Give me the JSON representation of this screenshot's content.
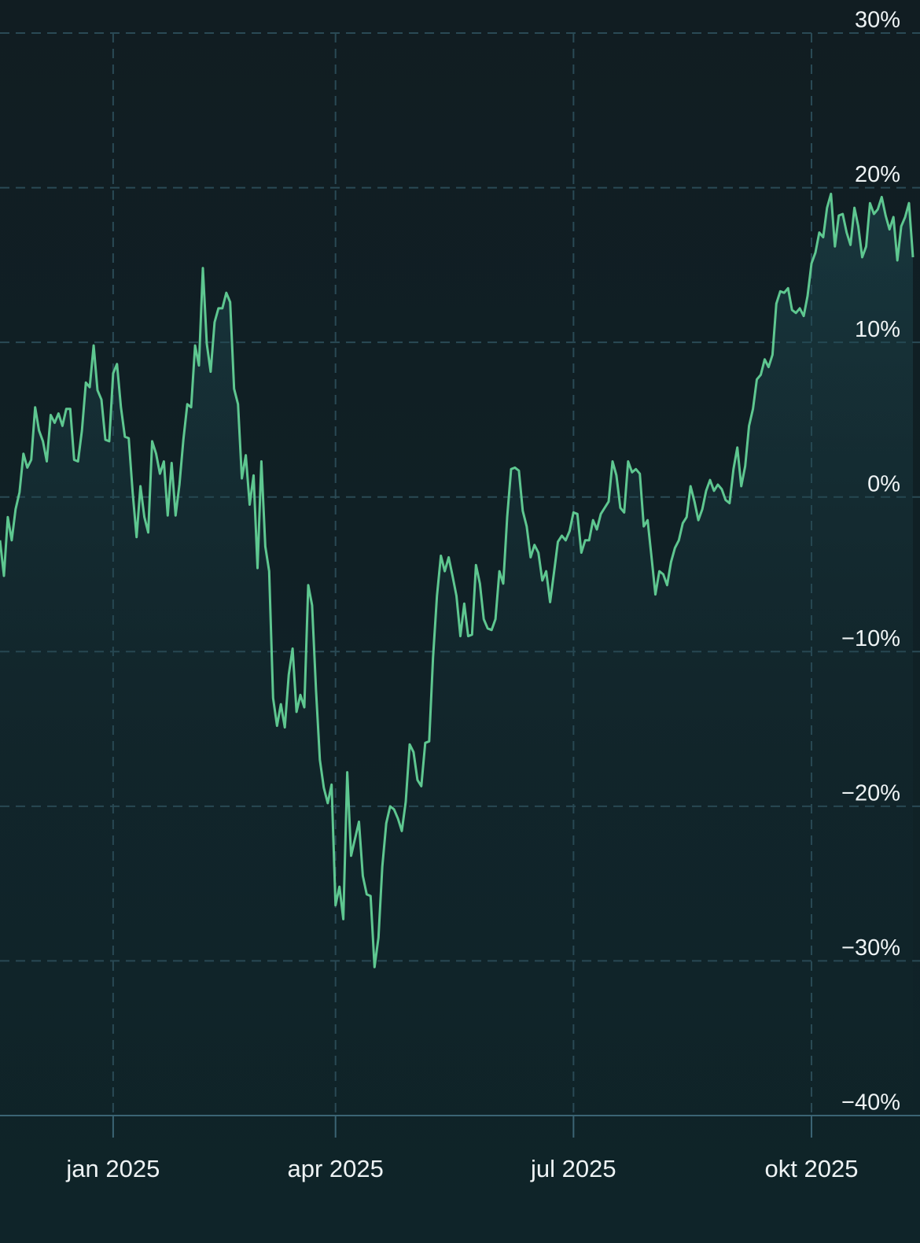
{
  "chart_data": {
    "type": "line",
    "values": [
      -2.8,
      -5.1,
      -1.3,
      -2.8,
      -0.8,
      0.3,
      2.8,
      1.9,
      2.4,
      5.8,
      4.3,
      3.6,
      2.3,
      5.3,
      4.8,
      5.4,
      4.6,
      5.7,
      5.7,
      2.4,
      2.3,
      4.3,
      7.4,
      7.1,
      9.8,
      6.9,
      6.3,
      3.7,
      3.6,
      8.0,
      8.6,
      5.8,
      3.9,
      3.8,
      0.3,
      -2.6,
      0.7,
      -1.3,
      -2.3,
      3.6,
      2.8,
      1.5,
      2.3,
      -1.2,
      2.2,
      -1.2,
      0.8,
      3.7,
      6.0,
      5.8,
      9.8,
      8.5,
      14.8,
      9.9,
      8.1,
      11.3,
      12.2,
      12.2,
      13.2,
      12.6,
      7.0,
      6.0,
      1.2,
      2.7,
      -0.5,
      1.4,
      -4.6,
      2.3,
      -3.2,
      -4.8,
      -13.0,
      -14.8,
      -13.4,
      -14.9,
      -11.5,
      -9.8,
      -13.9,
      -12.8,
      -13.6,
      -5.7,
      -7.0,
      -12.5,
      -17.0,
      -18.8,
      -19.8,
      -18.6,
      -26.4,
      -25.2,
      -27.3,
      -17.8,
      -23.2,
      -22.1,
      -21.0,
      -24.5,
      -25.7,
      -25.8,
      -30.4,
      -28.5,
      -23.9,
      -21.1,
      -20.0,
      -20.2,
      -20.8,
      -21.6,
      -19.7,
      -16.0,
      -16.5,
      -18.3,
      -18.7,
      -15.9,
      -15.8,
      -10.4,
      -6.4,
      -3.8,
      -4.8,
      -3.9,
      -5.1,
      -6.4,
      -9.0,
      -6.9,
      -9.0,
      -8.9,
      -4.4,
      -5.6,
      -7.9,
      -8.5,
      -8.6,
      -7.9,
      -4.8,
      -5.6,
      -1.3,
      1.8,
      1.9,
      1.7,
      -0.9,
      -1.9,
      -3.9,
      -3.1,
      -3.6,
      -5.4,
      -4.8,
      -6.8,
      -4.9,
      -2.9,
      -2.5,
      -2.8,
      -2.2,
      -1.0,
      -1.1,
      -3.6,
      -2.8,
      -2.8,
      -1.5,
      -2.1,
      -1.1,
      -0.7,
      -0.3,
      2.3,
      1.4,
      -0.7,
      -1.0,
      2.3,
      1.6,
      1.8,
      1.5,
      -1.9,
      -1.5,
      -3.9,
      -6.3,
      -4.8,
      -5.0,
      -5.7,
      -4.2,
      -3.3,
      -2.8,
      -1.7,
      -1.3,
      0.7,
      -0.3,
      -1.5,
      -0.8,
      0.4,
      1.1,
      0.4,
      0.8,
      0.5,
      -0.2,
      -0.4,
      1.8,
      3.2,
      0.7,
      2.0,
      4.6,
      5.7,
      7.6,
      7.9,
      8.9,
      8.4,
      9.2,
      12.5,
      13.3,
      13.2,
      13.5,
      12.1,
      11.9,
      12.2,
      11.7,
      13.0,
      15.1,
      15.8,
      17.1,
      16.8,
      18.7,
      19.6,
      16.2,
      18.2,
      18.3,
      17.1,
      16.3,
      18.7,
      17.5,
      15.5,
      16.2,
      19.0,
      18.3,
      18.6,
      19.4,
      18.2,
      17.3,
      18.1,
      15.3,
      17.5,
      18.1,
      19.0,
      15.5
    ],
    "color": "#5ec790",
    "xlim": [
      0,
      234
    ],
    "xticks": [
      {
        "value": 29,
        "label": "jan 2025"
      },
      {
        "value": 86,
        "label": "apr 2025"
      },
      {
        "value": 147,
        "label": "jul 2025"
      },
      {
        "value": 208,
        "label": "okt 2025"
      }
    ],
    "ylim": [
      -40,
      30
    ],
    "yticks": [
      {
        "value": 30,
        "label": "30%"
      },
      {
        "value": 20,
        "label": "20%"
      },
      {
        "value": 10,
        "label": "10%"
      },
      {
        "value": 0,
        "label": "0%"
      },
      {
        "value": -10,
        "label": "−10%"
      },
      {
        "value": -20,
        "label": "−20%"
      },
      {
        "value": -30,
        "label": "−30%"
      },
      {
        "value": -40,
        "label": "−40%"
      }
    ],
    "grid": true
  }
}
